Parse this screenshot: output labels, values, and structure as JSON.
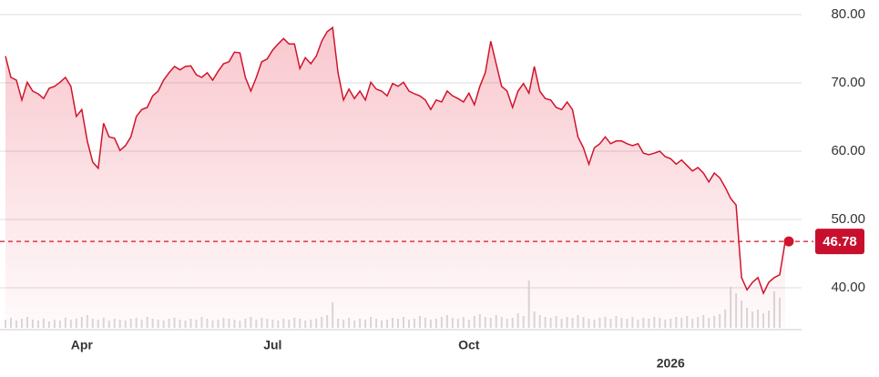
{
  "chart_data": {
    "type": "line",
    "series": [
      {
        "name": "Price",
        "color": "#d0142c",
        "values": [
          73.9,
          70.8,
          70.4,
          67.5,
          70.1,
          68.8,
          68.4,
          67.7,
          69.2,
          69.5,
          70.1,
          70.8,
          69.5,
          65.1,
          66.1,
          61.5,
          58.4,
          57.5,
          64.1,
          62.1,
          61.9,
          60.1,
          60.8,
          62.1,
          65.1,
          66.1,
          66.4,
          68.1,
          68.8,
          70.4,
          71.5,
          72.4,
          71.9,
          72.4,
          72.5,
          71.2,
          70.8,
          71.5,
          70.4,
          71.7,
          72.8,
          73.1,
          74.5,
          74.4,
          70.8,
          68.8,
          70.8,
          73.1,
          73.5,
          74.8,
          75.7,
          76.5,
          75.7,
          75.7,
          72.1,
          73.7,
          72.8,
          73.9,
          76.1,
          77.5,
          78.1,
          71.5,
          67.5,
          69.1,
          67.7,
          68.8,
          67.5,
          70.1,
          69.1,
          68.8,
          68.1,
          69.9,
          69.5,
          70.1,
          68.8,
          68.4,
          68.1,
          67.5,
          66.1,
          67.5,
          67.2,
          68.8,
          68.1,
          67.7,
          67.2,
          68.5,
          66.8,
          69.5,
          71.5,
          76.1,
          72.8,
          69.5,
          68.8,
          66.4,
          68.8,
          69.9,
          68.5,
          72.4,
          68.8,
          67.7,
          67.5,
          66.4,
          66.1,
          67.2,
          66.1,
          62.1,
          60.5,
          58.1,
          60.5,
          61.1,
          62.1,
          61.1,
          61.5,
          61.5,
          61.1,
          60.8,
          61.1,
          59.7,
          59.5,
          59.7,
          60.0,
          59.2,
          58.9,
          58.1,
          58.7,
          57.9,
          57.1,
          57.6,
          56.8,
          55.5,
          56.8,
          56.1,
          54.7,
          53.1,
          52.1,
          41.5,
          39.7,
          40.8,
          41.5,
          39.2,
          40.8,
          41.5,
          41.9,
          46.78
        ]
      },
      {
        "name": "Volume",
        "color": "#d9d9d9",
        "values": [
          9,
          11,
          8,
          10,
          12,
          9,
          8,
          10,
          7,
          9,
          8,
          11,
          9,
          10,
          12,
          14,
          10,
          9,
          11,
          8,
          10,
          9,
          8,
          10,
          11,
          9,
          12,
          10,
          9,
          8,
          10,
          11,
          9,
          8,
          10,
          9,
          12,
          10,
          8,
          9,
          11,
          10,
          9,
          8,
          10,
          12,
          9,
          11,
          10,
          9,
          8,
          10,
          9,
          11,
          10,
          8,
          9,
          10,
          12,
          14,
          28,
          10,
          9,
          11,
          8,
          10,
          9,
          12,
          10,
          8,
          9,
          11,
          10,
          12,
          9,
          10,
          13,
          11,
          9,
          10,
          12,
          14,
          11,
          10,
          12,
          9,
          13,
          15,
          12,
          11,
          14,
          12,
          10,
          11,
          16,
          13,
          52,
          18,
          14,
          12,
          11,
          13,
          10,
          12,
          11,
          14,
          12,
          10,
          9,
          11,
          12,
          10,
          13,
          11,
          10,
          12,
          9,
          11,
          10,
          12,
          11,
          9,
          10,
          12,
          11,
          13,
          10,
          12,
          14,
          11,
          13,
          15,
          20,
          45,
          38,
          30,
          22,
          18,
          20,
          16,
          19,
          40,
          33
        ]
      }
    ],
    "xticks": [
      {
        "value": 14,
        "label": "Apr"
      },
      {
        "value": 49,
        "label": "Jul"
      },
      {
        "value": 85,
        "label": "Oct"
      },
      {
        "value": 122,
        "label": "2026"
      }
    ],
    "ylim": [
      34,
      82
    ],
    "yticks": [
      {
        "value": 40,
        "label": "40.00"
      },
      {
        "value": 50,
        "label": "50.00"
      },
      {
        "value": 60,
        "label": "60.00"
      },
      {
        "value": 70,
        "label": "70.00"
      },
      {
        "value": 80,
        "label": "80.00"
      }
    ],
    "grid": true
  }
}
